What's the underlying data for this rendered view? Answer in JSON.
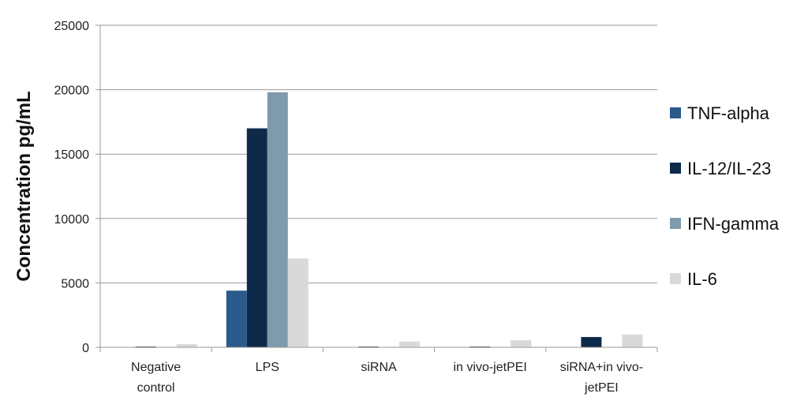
{
  "chart_data": {
    "type": "bar",
    "ylabel": "Concentration pg/mL",
    "xlabel": "",
    "ylim": [
      0,
      25000
    ],
    "yticks": [
      "0",
      "5000",
      "10000",
      "15000",
      "20000",
      "25000"
    ],
    "grid": true,
    "legend_position": "right",
    "categories": [
      [
        "Negative",
        "control"
      ],
      [
        "LPS"
      ],
      [
        "siRNA"
      ],
      [
        "in vivo-jetPEI"
      ],
      [
        "siRNA+in vivo-",
        "jetPEI"
      ]
    ],
    "series": [
      {
        "name": "TNF-alpha",
        "color": "#2a5a8c",
        "values": [
          0,
          4400,
          0,
          0,
          0
        ]
      },
      {
        "name": "IL-12/IL-23",
        "color": "#0e2a4a",
        "values": [
          60,
          17000,
          60,
          60,
          800
        ]
      },
      {
        "name": "IFN-gamma",
        "color": "#7f9aab",
        "values": [
          0,
          19800,
          0,
          0,
          0
        ]
      },
      {
        "name": "IL-6",
        "color": "#d9d9d9",
        "values": [
          250,
          6900,
          450,
          550,
          1000
        ]
      }
    ]
  }
}
